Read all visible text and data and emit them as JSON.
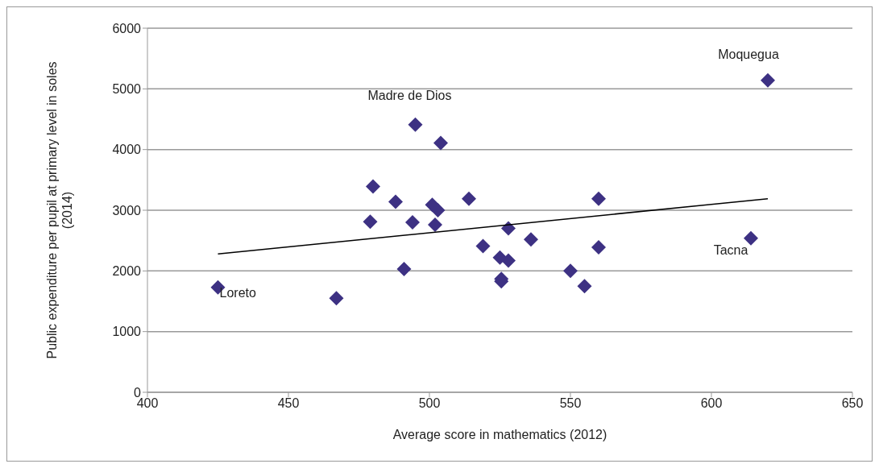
{
  "chart_data": {
    "type": "scatter",
    "xlabel": "Average score in mathematics (2012)",
    "ylabel": "Public expenditure per pupil at primary level in soles (2014)",
    "xlim": [
      400,
      650
    ],
    "xticks": [
      400,
      450,
      500,
      550,
      600,
      650
    ],
    "ylim": [
      0,
      6000
    ],
    "yticks": [
      0,
      1000,
      2000,
      3000,
      4000,
      5000,
      6000
    ],
    "grid": "y",
    "series": [
      {
        "marker": "diamond",
        "color": "#3d3183",
        "x": [
          425,
          467,
          480,
          479,
          488,
          494,
          491,
          495,
          504,
          501,
          503,
          502,
          514,
          519,
          528,
          536,
          525,
          528,
          525.5,
          525.5,
          550,
          555,
          560,
          560,
          614,
          620
        ],
        "values": [
          1730,
          1550,
          3390,
          2810,
          3140,
          2800,
          2030,
          4410,
          4110,
          3090,
          3000,
          2760,
          3190,
          2410,
          2700,
          2520,
          2220,
          2170,
          1870,
          1830,
          2000,
          1750,
          3190,
          2390,
          2540,
          5140
        ]
      },
      {
        "type": "line",
        "marker": "none",
        "color": "#000000",
        "x": [
          425,
          620
        ],
        "values": [
          2280,
          3190
        ]
      }
    ],
    "annotations": [
      {
        "text": "Loreto",
        "x": 425,
        "y": 1730
      },
      {
        "text": "Madre de Dios",
        "x": 495,
        "y": 4410
      },
      {
        "text": "Moquegua",
        "x": 620,
        "y": 5140
      },
      {
        "text": "Tacna",
        "x": 614,
        "y": 2540
      }
    ]
  }
}
